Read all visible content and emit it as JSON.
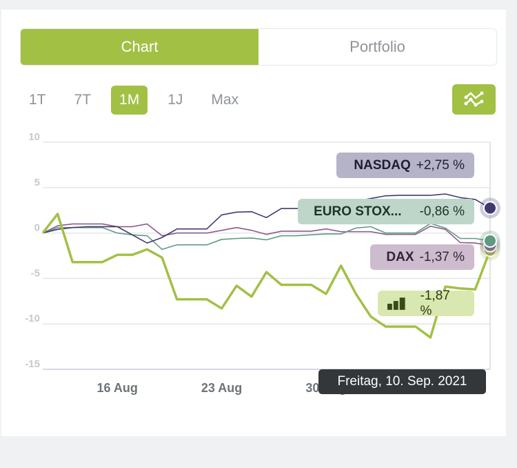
{
  "tabs": [
    {
      "label": "Chart",
      "active": true
    },
    {
      "label": "Portfolio",
      "active": false
    }
  ],
  "ranges": [
    {
      "label": "1T"
    },
    {
      "label": "7T"
    },
    {
      "label": "1M",
      "active": true
    },
    {
      "label": "1J"
    },
    {
      "label": "Max"
    }
  ],
  "compare_button_icon": "compare-chart-icon",
  "tooltip": "Freitag, 10. Sep. 2021",
  "colors": {
    "accent": "#a2c044",
    "nasdaq": "#3f3a6e",
    "euro": "#5e9a7f",
    "dax": "#8a5a8a",
    "portfolio": "#a2c044"
  },
  "chart_data": {
    "type": "line",
    "ylim": [
      -15,
      10
    ],
    "yticks": [
      "10",
      "5",
      "0",
      "-5",
      "-10",
      "-15"
    ],
    "ytick_values": [
      10,
      5,
      0,
      -5,
      -10,
      -15
    ],
    "xticks": [
      {
        "label": "16 Aug",
        "index": 5
      },
      {
        "label": "23 Aug",
        "index": 12
      },
      {
        "label": "30 Aug",
        "index": 19
      }
    ],
    "x_count": 31,
    "series": [
      {
        "name": "NASDAQ",
        "key": "nasdaq",
        "value_label": "+2,75 %",
        "values": [
          0,
          0.4,
          0.6,
          0.7,
          0.7,
          0.7,
          -0.2,
          -1.1,
          -0.5,
          0.45,
          0.45,
          0.45,
          2.0,
          2.3,
          2.35,
          1.7,
          2.7,
          2.7,
          2.7,
          3.0,
          3.1,
          3.5,
          3.8,
          4.1,
          4.15,
          4.15,
          4.15,
          4.3,
          3.9,
          3.7,
          2.75
        ]
      },
      {
        "name": "EURO STOX...",
        "key": "euro",
        "value_label": "-0,86 %",
        "values": [
          0,
          0.6,
          0.6,
          0.6,
          0.6,
          0,
          -0.2,
          -0.3,
          -1.8,
          -1.3,
          -1.3,
          -1.3,
          -0.7,
          -0.6,
          -0.55,
          -0.75,
          -0.3,
          -0.3,
          -0.2,
          -0.1,
          -0.1,
          0.55,
          0.7,
          0,
          0,
          0,
          1.05,
          0.55,
          -0.6,
          -0.6,
          -0.86
        ]
      },
      {
        "name": "DAX",
        "key": "dax",
        "value_label": "-1,37 %",
        "values": [
          0,
          0.8,
          1.0,
          1.0,
          1.0,
          0.7,
          0.7,
          1.0,
          -0.3,
          0,
          0,
          0,
          0.3,
          0.6,
          0.3,
          -0.15,
          0.2,
          0.2,
          0.2,
          0.45,
          0.15,
          0.15,
          0.15,
          -0.15,
          -0.15,
          -0.15,
          0.75,
          0.4,
          -1.05,
          -1.1,
          -1.37
        ]
      },
      {
        "name": "Portfolio",
        "key": "portfolio",
        "value_label": "-1,87 %",
        "values": [
          0,
          2.1,
          -3.2,
          -3.2,
          -3.2,
          -2.4,
          -2.4,
          -1.8,
          -2.7,
          -7.3,
          -7.3,
          -7.3,
          -8.3,
          -5.8,
          -7.0,
          -4.3,
          -5.7,
          -5.7,
          -5.7,
          -6.7,
          -3.6,
          -6.7,
          -9.2,
          -10.3,
          -10.3,
          -10.3,
          -11.5,
          -5.9,
          -6.1,
          -6.2,
          -1.87
        ]
      }
    ]
  }
}
